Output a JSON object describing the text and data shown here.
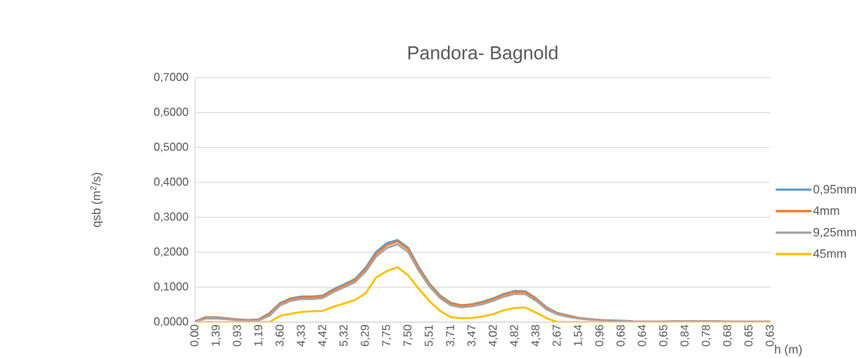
{
  "chart_data": {
    "type": "line",
    "title": "Pandora- Bagnold",
    "xlabel": "h (m)",
    "ylabel": "qsb (m$^{2}$/s)",
    "categories": [
      "0,00",
      null,
      "1,39",
      null,
      "0,93",
      null,
      "1,19",
      null,
      "3,60",
      null,
      "4,33",
      null,
      "4,42",
      null,
      "5,32",
      null,
      "6,29",
      null,
      "7,75",
      null,
      "7,50",
      null,
      "5,51",
      null,
      "3,71",
      null,
      "3,47",
      null,
      "4,02",
      null,
      "4,82",
      null,
      "4,38",
      null,
      "2,67",
      null,
      "1,54",
      null,
      "0,96",
      null,
      "0,68",
      null,
      "0,64",
      null,
      "0,65",
      null,
      "0,84",
      null,
      "0,78",
      null,
      "0,68",
      null,
      "0,65",
      null,
      "0,63"
    ],
    "ylim": [
      0,
      0.7
    ],
    "yticks": [
      {
        "value": 0,
        "label": "0,0000"
      },
      {
        "value": 0.1,
        "label": "0,1000"
      },
      {
        "value": 0.2,
        "label": "0,2000"
      },
      {
        "value": 0.3,
        "label": "0,3000"
      },
      {
        "value": 0.4,
        "label": "0,4000"
      },
      {
        "value": 0.5,
        "label": "0,5000"
      },
      {
        "value": 0.6,
        "label": "0,6000"
      },
      {
        "value": 0.7,
        "label": "0,7000"
      }
    ],
    "grid": "y",
    "legend": "right",
    "marker": "none",
    "line_style": "solid",
    "series": [
      {
        "name": "0,95mm",
        "color": "#5b9bd5",
        "values": [
          0.002,
          0.014,
          0.014,
          0.011,
          0.008,
          0.006,
          0.008,
          0.026,
          0.055,
          0.068,
          0.073,
          0.073,
          0.076,
          0.094,
          0.108,
          0.123,
          0.155,
          0.201,
          0.226,
          0.235,
          0.213,
          0.157,
          0.11,
          0.076,
          0.055,
          0.048,
          0.051,
          0.058,
          0.068,
          0.081,
          0.089,
          0.088,
          0.068,
          0.042,
          0.026,
          0.019,
          0.012,
          0.009,
          0.006,
          0.005,
          0.004,
          0.003,
          null,
          null,
          null,
          null,
          null,
          null,
          null,
          null,
          null,
          null,
          null,
          null,
          null
        ]
      },
      {
        "name": "4mm",
        "color": "#ed7d31",
        "values": [
          0.002,
          0.013,
          0.013,
          0.01,
          0.007,
          0.005,
          0.007,
          0.024,
          0.053,
          0.066,
          0.071,
          0.071,
          0.074,
          0.091,
          0.105,
          0.12,
          0.151,
          0.196,
          0.22,
          0.231,
          0.209,
          0.154,
          0.108,
          0.074,
          0.053,
          0.047,
          0.05,
          0.056,
          0.066,
          0.079,
          0.087,
          0.086,
          0.066,
          0.04,
          0.025,
          0.018,
          0.012,
          0.008,
          0.006,
          0.004,
          null,
          null,
          null,
          null,
          null,
          null,
          null,
          null,
          null,
          null,
          null,
          null,
          null,
          null,
          null
        ]
      },
      {
        "name": "9,25mm",
        "color": "#a5a5a5",
        "values": [
          0.001,
          0.01,
          0.01,
          0.008,
          0.005,
          0.004,
          0.005,
          0.019,
          0.048,
          0.061,
          0.066,
          0.066,
          0.069,
          0.086,
          0.1,
          0.114,
          0.144,
          0.188,
          0.212,
          0.223,
          0.201,
          0.147,
          0.102,
          0.069,
          0.048,
          0.042,
          0.045,
          0.051,
          0.061,
          0.073,
          0.081,
          0.08,
          0.061,
          0.036,
          0.022,
          0.015,
          0.01,
          0.007,
          0.005,
          0.003,
          0.002,
          0.002,
          0.002,
          0.002,
          0.002,
          0.003,
          0.003,
          0.003,
          0.003,
          0.003,
          0.002,
          0.002,
          0.002,
          0.002,
          0.002
        ]
      },
      {
        "name": "45mm",
        "color": "#ffc000",
        "values": [
          0,
          0,
          0,
          0,
          0,
          0,
          0,
          0,
          0.018,
          0.024,
          0.029,
          0.031,
          0.032,
          0.044,
          0.053,
          0.063,
          0.082,
          0.128,
          0.146,
          0.157,
          0.134,
          0.095,
          0.06,
          0.032,
          0.014,
          0.011,
          0.012,
          0.016,
          0.023,
          0.034,
          0.04,
          0.042,
          0.027,
          0.011,
          0,
          0,
          0,
          0,
          0,
          0,
          0,
          0,
          0,
          0,
          0,
          0,
          0,
          0,
          0,
          0,
          0,
          0,
          0,
          0,
          0
        ]
      }
    ]
  }
}
